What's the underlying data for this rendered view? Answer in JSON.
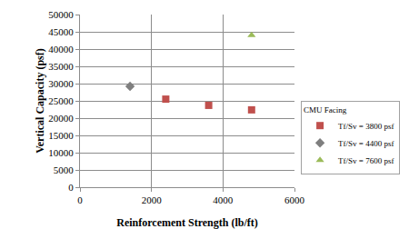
{
  "chart_data": {
    "type": "scatter",
    "x_label": "Reinforcement Strength (lb/ft)",
    "y_label": "Vertical Capacity (psf)",
    "legend_title": "CMU Facing",
    "xlim": [
      0,
      6000
    ],
    "xticks": [
      0,
      2000,
      4000,
      6000
    ],
    "ylim": [
      0,
      50000
    ],
    "yticks": [
      0,
      5000,
      10000,
      15000,
      20000,
      25000,
      30000,
      35000,
      40000,
      45000,
      50000
    ],
    "grid": true,
    "legend": "right",
    "series": [
      {
        "name": "Tf/Sv = 3800 psf",
        "color": "#c0504d",
        "marker": "square",
        "x": [
          2400,
          3600,
          4800
        ],
        "values": [
          25500,
          23700,
          22400
        ]
      },
      {
        "name": "Tf/Sv = 4400 psf",
        "color": "#7f7f7f",
        "marker": "diamond",
        "x": [
          1400
        ],
        "values": [
          29200
        ]
      },
      {
        "name": "Tf/Sv = 7600 psf",
        "color": "#9bbb59",
        "marker": "triangle-up",
        "x": [
          4800
        ],
        "values": [
          44000
        ]
      }
    ]
  }
}
